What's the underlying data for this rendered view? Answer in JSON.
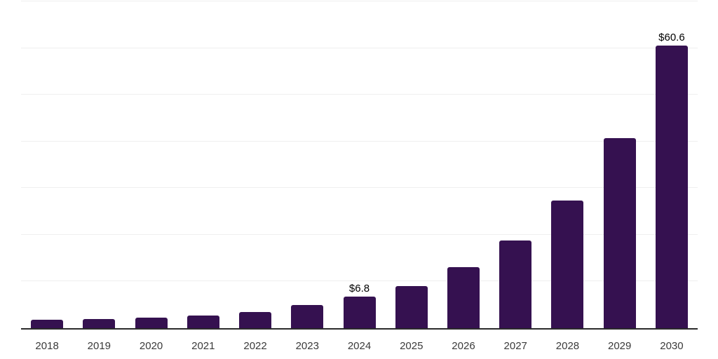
{
  "chart_data": {
    "type": "bar",
    "title": "",
    "xlabel": "",
    "ylabel": "",
    "categories": [
      "2018",
      "2019",
      "2020",
      "2021",
      "2022",
      "2023",
      "2024",
      "2025",
      "2026",
      "2027",
      "2028",
      "2029",
      "2030"
    ],
    "values": [
      1.8,
      2.0,
      2.2,
      2.7,
      3.5,
      4.9,
      6.8,
      9.0,
      13.1,
      18.8,
      27.4,
      40.7,
      60.6
    ],
    "data_labels": {
      "2024": "$6.8",
      "2030": "$60.6"
    },
    "ylim": [
      0,
      70
    ],
    "y_gridline_values": [
      10,
      20,
      30,
      40,
      50,
      60,
      70
    ],
    "grid": "horizontal-only",
    "y_tick_labels_shown": false,
    "legend_position": "none",
    "colors": {
      "bar": "#351150",
      "axis_line": "#2b2b2b",
      "gridline": "#efefef",
      "tick_label": "#3a3a3a",
      "data_label": "#000000",
      "background": "#ffffff"
    }
  }
}
